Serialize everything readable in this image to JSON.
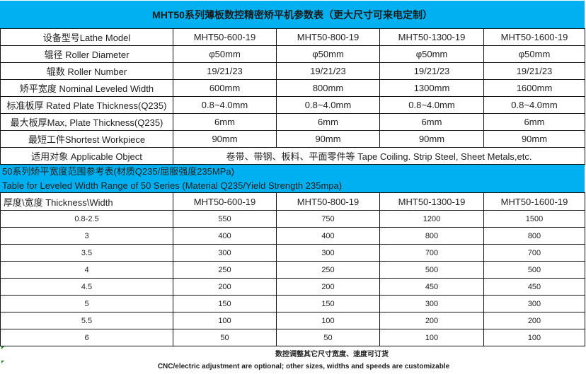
{
  "title": "MHT50系列薄板数控精密矫平机参数表（更大尺寸可来电定制）",
  "spec_table": {
    "rows": [
      [
        "设备型号Lathe Model",
        "MHT50-600-19",
        "MHT50-800-19",
        "MHT50-1300-19",
        "MHT50-1600-19"
      ],
      [
        "辊径 Roller Diameter",
        "φ50mm",
        "φ50mm",
        "φ50mm",
        "φ50mm"
      ],
      [
        "辊数 Roller Number",
        "19/21/23",
        "19/21/23",
        "19/21/23",
        "19/21/23"
      ],
      [
        "矫平宽度 Nominal Leveled Width",
        "600mm",
        "800mm",
        "1300mm",
        "1600mm"
      ],
      [
        "标准板厚 Rated Plate Thickness(Q235)",
        "0.8~4.0mm",
        "0.8~4.0mm",
        "0.8~4.0mm",
        "0.8~4.0mm"
      ],
      [
        "最大板厚Max, Plate Thickness(Q235)",
        "6mm",
        "6mm",
        "6mm",
        "6mm"
      ],
      [
        "最短工件Shortest Workpiece",
        "90mm",
        "90mm",
        "90mm",
        "90mm"
      ]
    ],
    "applicable_label": "适用对象 Applicable Object",
    "applicable_value": "卷带、带钢、板料、平面零件等 Tape Coiling. Strip Steel, Sheet Metals,etc."
  },
  "range_section": {
    "title_cn": "50系列矫平宽度范围参考表(材质Q235/屈服强度235MPa)",
    "title_en": "Table for Leveled Width Range of 50 Series (Material Q235/Yield Strength 235mpa)",
    "header": [
      "厚度\\宽度 Thickness\\Width",
      "MHT50-600-19",
      "MHT50-800-19",
      "MHT50-1300-19",
      "MHT50-1600-19"
    ],
    "rows": [
      [
        "0.8-2.5",
        "550",
        "750",
        "1200",
        "1500"
      ],
      [
        "3",
        "400",
        "400",
        "800",
        "800"
      ],
      [
        "3.5",
        "300",
        "300",
        "700",
        "700"
      ],
      [
        "4",
        "250",
        "250",
        "500",
        "500"
      ],
      [
        "4.5",
        "200",
        "200",
        "450",
        "450"
      ],
      [
        "5",
        "150",
        "150",
        "300",
        "300"
      ],
      [
        "5.5",
        "100",
        "100",
        "200",
        "200"
      ],
      [
        "6",
        "50",
        "50",
        "100",
        "100"
      ]
    ]
  },
  "notes": {
    "cn": "数控调整其它尺寸宽度、速度可订货",
    "en": "CNC/electric adjustment are optional; other sizes, widths and speeds are customizable"
  },
  "colors": {
    "header_bg": "#00b0f0"
  }
}
